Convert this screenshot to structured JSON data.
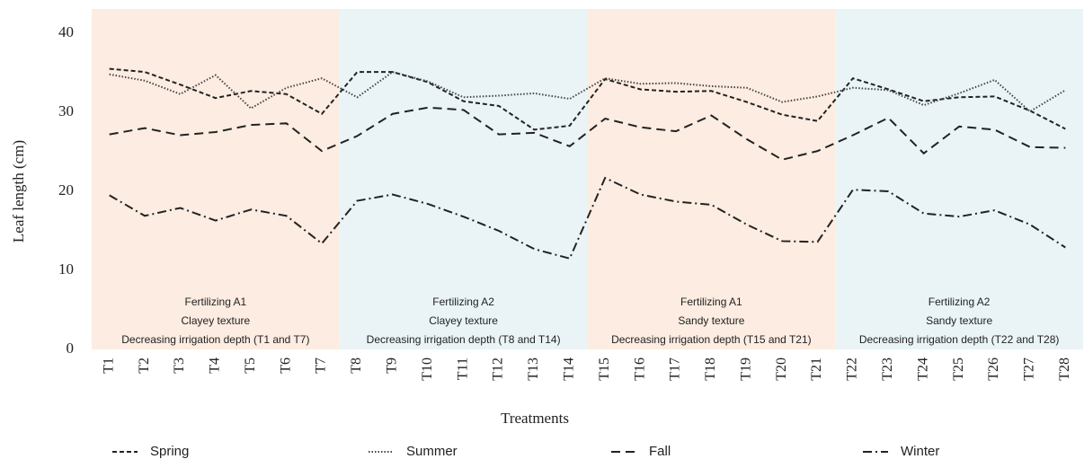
{
  "chart_data": {
    "type": "line",
    "y_label": "Leaf length (cm)",
    "x_label": "Treatments",
    "categories": [
      "T1",
      "T2",
      "T3",
      "T4",
      "T5",
      "T6",
      "T7",
      "T8",
      "T9",
      "T10",
      "T11",
      "T12",
      "T13",
      "T14",
      "T15",
      "T16",
      "T17",
      "T18",
      "T19",
      "T20",
      "T21",
      "T22",
      "T23",
      "T24",
      "T25",
      "T26",
      "T27",
      "T28"
    ],
    "series": [
      {
        "name": "Spring",
        "color": "#222222",
        "dash": "5,3",
        "values": [
          35.5,
          35.1,
          33.5,
          31.8,
          32.7,
          32.3,
          29.8,
          35.1,
          35.1,
          33.8,
          31.4,
          30.8,
          27.8,
          28.3,
          34.2,
          32.9,
          32.6,
          32.7,
          31.3,
          29.7,
          28.9,
          34.3,
          32.9,
          31.4,
          31.9,
          32.0,
          30.2,
          27.9
        ]
      },
      {
        "name": "Summer",
        "color": "#444444",
        "dash": "1.5,2",
        "values": [
          34.8,
          34.0,
          32.3,
          34.7,
          30.5,
          33.1,
          34.3,
          31.9,
          35.1,
          33.9,
          31.9,
          32.1,
          32.4,
          31.7,
          34.3,
          33.6,
          33.7,
          33.3,
          33.1,
          31.3,
          32.0,
          33.1,
          32.8,
          30.9,
          32.4,
          34.1,
          30.1,
          32.8
        ]
      },
      {
        "name": "Fall",
        "color": "#222222",
        "dash": "10,6",
        "values": [
          27.2,
          28.0,
          27.1,
          27.5,
          28.4,
          28.6,
          25.1,
          27.0,
          29.8,
          30.6,
          30.3,
          27.2,
          27.4,
          25.7,
          29.2,
          28.1,
          27.6,
          29.6,
          26.6,
          24.0,
          25.1,
          27.1,
          29.3,
          24.8,
          28.2,
          27.8,
          25.6,
          25.5
        ]
      },
      {
        "name": "Winter",
        "color": "#222222",
        "dash": "10,4,2,4",
        "values": [
          19.5,
          16.9,
          17.9,
          16.3,
          17.7,
          16.9,
          13.4,
          18.8,
          19.6,
          18.4,
          16.8,
          15.0,
          12.7,
          11.5,
          21.7,
          19.6,
          18.7,
          18.3,
          15.8,
          13.7,
          13.6,
          20.2,
          20.0,
          17.2,
          16.8,
          17.6,
          15.8,
          12.9
        ]
      }
    ],
    "regions": [
      {
        "color": "#fcece1",
        "text": [
          "Fertilizing A1",
          "Clayey texture",
          "Decreasing irrigation depth (T1 and T7)"
        ]
      },
      {
        "color": "#eaf4f7",
        "text": [
          "Fertilizing A2",
          "Clayey texture",
          "Decreasing irrigation depth (T8 and T14)"
        ]
      },
      {
        "color": "#fcece1",
        "text": [
          "Fertilizing A1",
          "Sandy texture",
          "Decreasing irrigation depth (T15 and T21)"
        ]
      },
      {
        "color": "#eaf4f7",
        "text": [
          "Fertilizing A2",
          "Sandy texture",
          "Decreasing irrigation depth (T22 and T28)"
        ]
      }
    ],
    "ylim": [
      0,
      40
    ],
    "yticks": [
      0,
      10,
      20,
      30,
      40
    ],
    "grid": false
  }
}
